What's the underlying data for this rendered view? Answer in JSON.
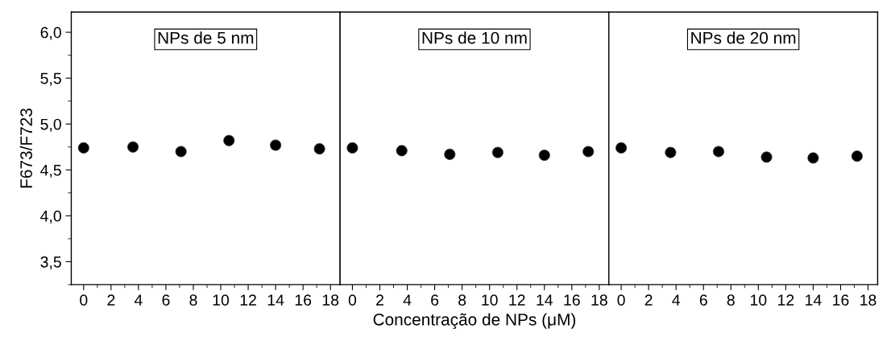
{
  "chart_data": [
    {
      "type": "scatter",
      "ylabel": "F673/F723",
      "annotations": [
        "NPs de 5 nm"
      ],
      "x": [
        0,
        3.6,
        7.1,
        10.6,
        14,
        17.2
      ],
      "series": [
        {
          "color": "#000000",
          "values": [
            4.74,
            4.75,
            4.7,
            4.82,
            4.77,
            4.73
          ]
        }
      ],
      "xlim": [
        -0.9,
        18.7
      ],
      "xticks": [
        0,
        2,
        4,
        6,
        8,
        10,
        12,
        14,
        16,
        18
      ],
      "ylim": [
        3.25,
        6.22
      ],
      "yticks": [
        {
          "value": 3.5,
          "label": "3,5"
        },
        {
          "value": 4.0,
          "label": "4,0"
        },
        {
          "value": 4.5,
          "label": "4,5"
        },
        {
          "value": 5.0,
          "label": "5,0"
        },
        {
          "value": 5.5,
          "label": "5,5"
        },
        {
          "value": 6.0,
          "label": "6,0"
        }
      ],
      "marker": "circle",
      "grid": false
    },
    {
      "type": "scatter",
      "xlabel": "Concentração de NPs (μM)",
      "annotations": [
        "NPs de 10 nm"
      ],
      "x": [
        0,
        3.6,
        7.1,
        10.6,
        14,
        17.2
      ],
      "series": [
        {
          "color": "#000000",
          "values": [
            4.74,
            4.71,
            4.67,
            4.69,
            4.66,
            4.7
          ]
        }
      ],
      "xlim": [
        -0.9,
        18.7
      ],
      "xticks": [
        0,
        2,
        4,
        6,
        8,
        10,
        12,
        14,
        16,
        18
      ],
      "ylim": [
        3.25,
        6.22
      ],
      "tick_labels": "x",
      "marker": "circle",
      "grid": false
    },
    {
      "type": "scatter",
      "annotations": [
        "NPs de 20 nm"
      ],
      "x": [
        0,
        3.6,
        7.1,
        10.6,
        14,
        17.2
      ],
      "series": [
        {
          "color": "#000000",
          "values": [
            4.74,
            4.69,
            4.7,
            4.64,
            4.63,
            4.65
          ]
        }
      ],
      "xlim": [
        -0.9,
        18.7
      ],
      "xticks": [
        0,
        2,
        4,
        6,
        8,
        10,
        12,
        14,
        16,
        18
      ],
      "ylim": [
        3.25,
        6.22
      ],
      "tick_labels": "x",
      "marker": "circle",
      "grid": false
    }
  ]
}
